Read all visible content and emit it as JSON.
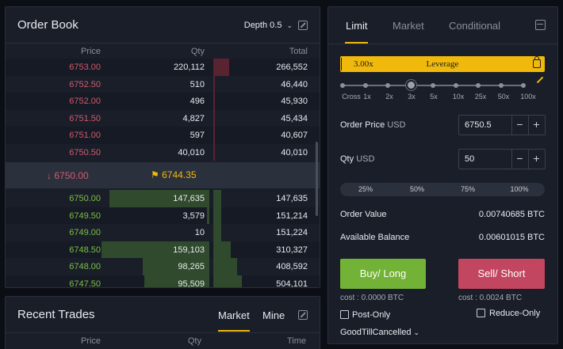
{
  "orderbook": {
    "title": "Order Book",
    "depth_label": "Depth 0.5",
    "columns": {
      "price": "Price",
      "qty": "Qty",
      "total": "Total"
    },
    "asks": [
      {
        "price": "6753.00",
        "qty": "220,112",
        "total": "266,552"
      },
      {
        "price": "6752.50",
        "qty": "510",
        "total": "46,440"
      },
      {
        "price": "6752.00",
        "qty": "496",
        "total": "45,930"
      },
      {
        "price": "6751.50",
        "qty": "4,827",
        "total": "45,434"
      },
      {
        "price": "6751.00",
        "qty": "597",
        "total": "40,607"
      },
      {
        "price": "6750.50",
        "qty": "40,010",
        "total": "40,010"
      }
    ],
    "last_price": "6750.00",
    "mark_price": "6744.35",
    "bids": [
      {
        "price": "6750.00",
        "qty": "147,635",
        "total": "147,635"
      },
      {
        "price": "6749.50",
        "qty": "3,579",
        "total": "151,214"
      },
      {
        "price": "6749.00",
        "qty": "10",
        "total": "151,224"
      },
      {
        "price": "6748.50",
        "qty": "159,103",
        "total": "310,327"
      },
      {
        "price": "6748.00",
        "qty": "98,265",
        "total": "408,592"
      },
      {
        "price": "6747.50",
        "qty": "95,509",
        "total": "504,101"
      }
    ]
  },
  "trades": {
    "title": "Recent Trades",
    "tabs": [
      "Market",
      "Mine"
    ],
    "columns": {
      "price": "Price",
      "qty": "Qty",
      "time": "Time"
    }
  },
  "orderform": {
    "tabs": [
      "Limit",
      "Market",
      "Conditional"
    ],
    "leverage_value": "3.00x",
    "leverage_label": "Leverage",
    "leverage_marks": [
      "Cross",
      "1x",
      "2x",
      "3x",
      "5x",
      "10x",
      "25x",
      "50x",
      "100x"
    ],
    "order_price_label": "Order Price",
    "order_price_unit": "USD",
    "order_price_value": "6750.5",
    "qty_label": "Qty",
    "qty_unit": "USD",
    "qty_value": "50",
    "percent_options": [
      "25%",
      "50%",
      "75%",
      "100%"
    ],
    "order_value_label": "Order Value",
    "order_value": "0.00740685 BTC",
    "balance_label": "Available Balance",
    "balance_value": "0.00601015 BTC",
    "buy_label": "Buy/ Long",
    "sell_label": "Sell/ Short",
    "buy_cost": "cost : 0.0000 BTC",
    "sell_cost": "cost : 0.0024 BTC",
    "post_only_label": "Post-Only",
    "reduce_only_label": "Reduce-Only",
    "time_in_force": "GoodTillCancelled"
  },
  "colors": {
    "accent": "#f0b90b",
    "buy": "#72b236",
    "sell": "#c24660",
    "ask_text": "#d05a6e",
    "bid_text": "#7bc043"
  }
}
